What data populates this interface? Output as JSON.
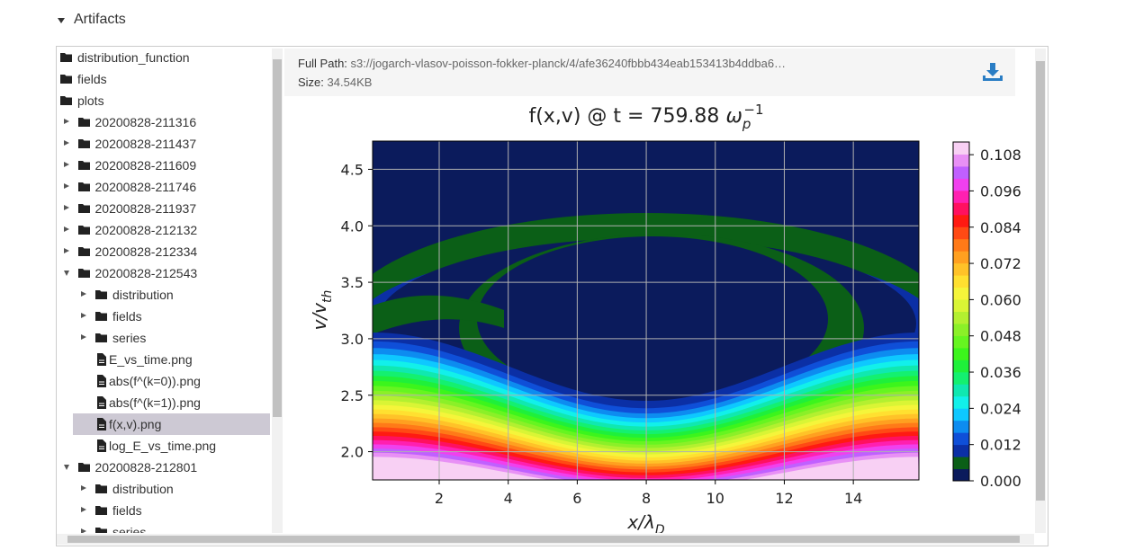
{
  "section": {
    "title": "Artifacts"
  },
  "tree": [
    {
      "label": "distribution_function",
      "type": "folder"
    },
    {
      "label": "fields",
      "type": "folder"
    },
    {
      "label": "plots",
      "type": "folder",
      "children": [
        {
          "label": "20200828-211316",
          "type": "folder",
          "expanded": false
        },
        {
          "label": "20200828-211437",
          "type": "folder",
          "expanded": false
        },
        {
          "label": "20200828-211609",
          "type": "folder",
          "expanded": false
        },
        {
          "label": "20200828-211746",
          "type": "folder",
          "expanded": false
        },
        {
          "label": "20200828-211937",
          "type": "folder",
          "expanded": false
        },
        {
          "label": "20200828-212132",
          "type": "folder",
          "expanded": false
        },
        {
          "label": "20200828-212334",
          "type": "folder",
          "expanded": false
        },
        {
          "label": "20200828-212543",
          "type": "folder",
          "expanded": true,
          "children": [
            {
              "label": "distribution",
              "type": "folder",
              "expanded": false
            },
            {
              "label": "fields",
              "type": "folder",
              "expanded": false
            },
            {
              "label": "series",
              "type": "folder",
              "expanded": false
            },
            {
              "label": "E_vs_time.png",
              "type": "file"
            },
            {
              "label": "abs(f^(k=0)).png",
              "type": "file"
            },
            {
              "label": "abs(f^(k=1)).png",
              "type": "file"
            },
            {
              "label": "f(x,v).png",
              "type": "file",
              "selected": true
            },
            {
              "label": "log_E_vs_time.png",
              "type": "file"
            }
          ]
        },
        {
          "label": "20200828-212801",
          "type": "folder",
          "expanded": true,
          "children": [
            {
              "label": "distribution",
              "type": "folder",
              "expanded": false
            },
            {
              "label": "fields",
              "type": "folder",
              "expanded": false
            },
            {
              "label": "series",
              "type": "folder",
              "expanded": false
            }
          ]
        }
      ]
    }
  ],
  "preview": {
    "path_label": "Full Path:",
    "path": "s3://jogarch-vlasov-poisson-fokker-planck/4/afe36240fbbb434eab153413b4ddba6…",
    "size_label": "Size:",
    "size": "34.54KB"
  },
  "chart_data": {
    "type": "contour",
    "title": "f(x,v) @ t = 759.88",
    "title_unit": {
      "symbol": "ω",
      "sub": "p",
      "sup": "−1"
    },
    "xlabel": {
      "symbol": "x/λ",
      "sub": "D"
    },
    "ylabel": {
      "symbol": "v/v",
      "sub": "th"
    },
    "xlim": [
      0.07,
      15.9
    ],
    "xticks": [
      2,
      4,
      6,
      8,
      10,
      12,
      14
    ],
    "ylim": [
      1.75,
      4.75
    ],
    "yticks": [
      {
        "value": 2.0,
        "label": "2.0"
      },
      {
        "value": 2.5,
        "label": "2.5"
      },
      {
        "value": 3.0,
        "label": "3.0"
      },
      {
        "value": 3.5,
        "label": "3.5"
      },
      {
        "value": 4.0,
        "label": "4.0"
      },
      {
        "value": 4.5,
        "label": "4.5"
      }
    ],
    "grid": true,
    "colorbar": {
      "lim": [
        0,
        0.1122
      ],
      "ticks": [
        {
          "value": 0,
          "label": "0.000"
        },
        {
          "value": 0.012,
          "label": "0.012"
        },
        {
          "value": 0.024,
          "label": "0.024"
        },
        {
          "value": 0.036,
          "label": "0.036"
        },
        {
          "value": 0.048,
          "label": "0.048"
        },
        {
          "value": 0.06,
          "label": "0.060"
        },
        {
          "value": 0.072,
          "label": "0.072"
        },
        {
          "value": 0.084,
          "label": "0.084"
        },
        {
          "value": 0.096,
          "label": "0.096"
        },
        {
          "value": 0.108,
          "label": "0.108"
        }
      ],
      "colors": [
        "#0b1b5c",
        "#0b5f17",
        "#0b2fa5",
        "#0f4fd8",
        "#0d8cf0",
        "#0ec8ff",
        "#12f0ea",
        "#10e8b0",
        "#14f070",
        "#1ff03a",
        "#3cf51c",
        "#66f520",
        "#8bf028",
        "#b3f030",
        "#d9f535",
        "#f5f53a",
        "#ffe030",
        "#ffc228",
        "#ffa020",
        "#ff7a18",
        "#ff4a14",
        "#ff1a12",
        "#ff1060",
        "#ff20b0",
        "#f040ee",
        "#c060ff",
        "#e890f5",
        "#f8d0f4"
      ]
    }
  }
}
